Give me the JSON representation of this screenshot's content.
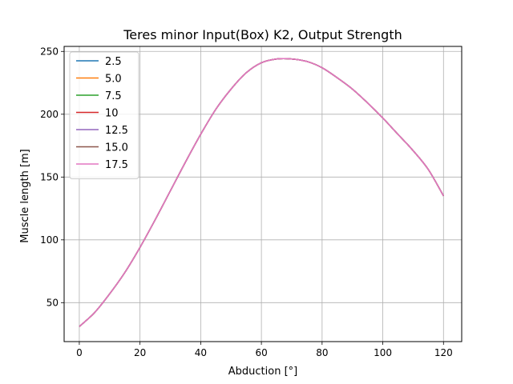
{
  "chart_data": {
    "type": "line",
    "title": "Teres minor Input(Box) K2, Output Strength",
    "xlabel": "Abduction [°]",
    "ylabel": "Muscle length [m]",
    "xlim": [
      -5,
      126
    ],
    "ylim": [
      19,
      254
    ],
    "xticks": [
      0,
      20,
      40,
      60,
      80,
      100,
      120
    ],
    "yticks": [
      50,
      100,
      150,
      200,
      250
    ],
    "grid": true,
    "legend_position": "upper-left",
    "x": [
      0,
      5,
      10,
      15,
      20,
      25,
      30,
      35,
      40,
      45,
      50,
      55,
      60,
      65,
      70,
      75,
      80,
      85,
      90,
      95,
      100,
      105,
      110,
      115,
      120
    ],
    "series": [
      {
        "name": "2.5",
        "color": "#1f77b4",
        "values": [
          31,
          42,
          57,
          74,
          94,
          116,
          139,
          162,
          184,
          204,
          220,
          233,
          241,
          244,
          244,
          242,
          237,
          229,
          220,
          209,
          197,
          184,
          171,
          156,
          135
        ]
      },
      {
        "name": "5.0",
        "color": "#ff7f0e",
        "values": [
          31,
          42,
          57,
          74,
          94,
          116,
          139,
          162,
          184,
          204,
          220,
          233,
          241,
          244,
          244,
          242,
          237,
          229,
          220,
          209,
          197,
          184,
          171,
          156,
          135
        ]
      },
      {
        "name": "7.5",
        "color": "#2ca02c",
        "values": [
          31,
          42,
          57,
          74,
          94,
          116,
          139,
          162,
          184,
          204,
          220,
          233,
          241,
          244,
          244,
          242,
          237,
          229,
          220,
          209,
          197,
          184,
          171,
          156,
          135
        ]
      },
      {
        "name": "10",
        "color": "#d62728",
        "values": [
          31,
          42,
          57,
          74,
          94,
          116,
          139,
          162,
          184,
          204,
          220,
          233,
          241,
          244,
          244,
          242,
          237,
          229,
          220,
          209,
          197,
          184,
          171,
          156,
          135
        ]
      },
      {
        "name": "12.5",
        "color": "#9467bd",
        "values": [
          31,
          42,
          57,
          74,
          94,
          116,
          139,
          162,
          184,
          204,
          220,
          233,
          241,
          244,
          244,
          242,
          237,
          229,
          220,
          209,
          197,
          184,
          171,
          156,
          135
        ]
      },
      {
        "name": "15.0",
        "color": "#8c564b",
        "values": [
          31,
          42,
          57,
          74,
          94,
          116,
          139,
          162,
          184,
          204,
          220,
          233,
          241,
          244,
          244,
          242,
          237,
          229,
          220,
          209,
          197,
          184,
          171,
          156,
          135
        ]
      },
      {
        "name": "17.5",
        "color": "#e377c2",
        "values": [
          31,
          42,
          57,
          74,
          94,
          116,
          139,
          162,
          184,
          204,
          220,
          233,
          241,
          244,
          244,
          242,
          237,
          229,
          220,
          209,
          197,
          184,
          171,
          156,
          135
        ]
      }
    ]
  }
}
